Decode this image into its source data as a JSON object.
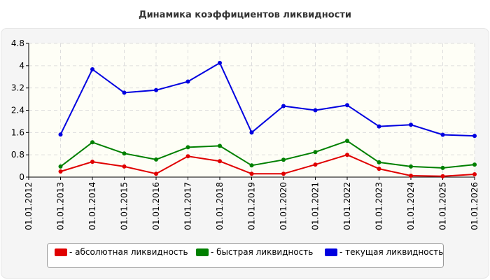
{
  "chart_data": {
    "type": "line",
    "title": "Динамика коэффициентов ликвидности",
    "x": [
      "01.01.2012",
      "01.01.2013",
      "01.01.2014",
      "01.01.2015",
      "01.01.2016",
      "01.01.2017",
      "01.01.2018",
      "01.01.2019",
      "01.01.2020",
      "01.01.2021",
      "01.01.2022",
      "01.01.2023",
      "01.01.2024",
      "01.01.2025",
      "01.01.2026"
    ],
    "y_ticks": [
      "0",
      "0.8",
      "1.6",
      "2.4",
      "3.2",
      "4",
      "4.8"
    ],
    "ylim": [
      0,
      4.8
    ],
    "grid": true,
    "legend_position": "bottom",
    "series": [
      {
        "name": "- абсолютная ликвидность",
        "color": "#e00000",
        "values": [
          null,
          0.2,
          0.55,
          0.38,
          0.12,
          0.75,
          0.57,
          0.12,
          0.12,
          0.45,
          0.8,
          0.3,
          0.05,
          0.03,
          0.1
        ]
      },
      {
        "name": "- быстрая ликвидность",
        "color": "#008000",
        "values": [
          null,
          0.38,
          1.25,
          0.85,
          0.63,
          1.07,
          1.12,
          0.42,
          0.62,
          0.9,
          1.3,
          0.53,
          0.38,
          0.33,
          0.45
        ]
      },
      {
        "name": "- текущая ликвидность",
        "color": "#0000e0",
        "values": [
          null,
          1.53,
          3.87,
          3.03,
          3.12,
          3.43,
          4.1,
          1.6,
          2.55,
          2.4,
          2.58,
          1.82,
          1.88,
          1.52,
          1.48
        ]
      }
    ]
  }
}
